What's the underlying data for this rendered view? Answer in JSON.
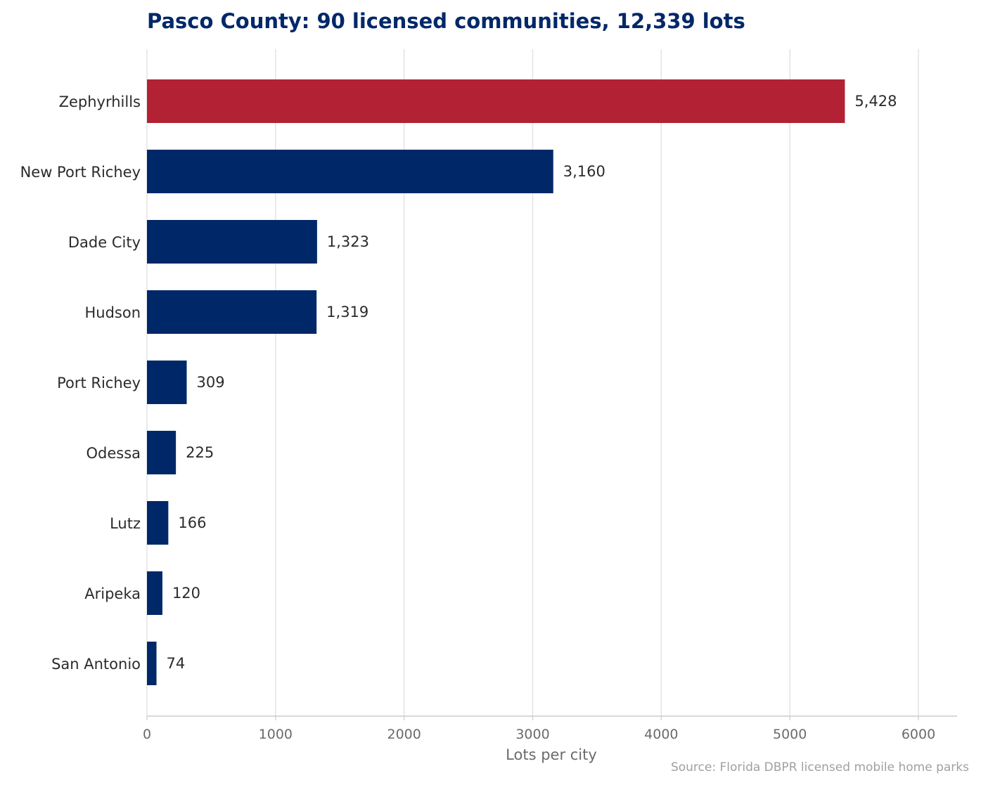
{
  "chart_data": {
    "type": "bar",
    "orientation": "horizontal",
    "title": "Pasco County: 90 licensed communities, 12,339 lots",
    "xlabel": "Lots per city",
    "ylabel": "",
    "categories": [
      "Zephyrhills",
      "New Port Richey",
      "Dade City",
      "Hudson",
      "Port Richey",
      "Odessa",
      "Lutz",
      "Aripeka",
      "San Antonio"
    ],
    "values": [
      5428,
      3160,
      1323,
      1319,
      309,
      225,
      166,
      120,
      74
    ],
    "value_labels": [
      "5,428",
      "3,160",
      "1,323",
      "1,319",
      "309",
      "225",
      "166",
      "120",
      "74"
    ],
    "highlight_index": 0,
    "xlim": [
      0,
      6300
    ],
    "x_ticks": [
      0,
      1000,
      2000,
      3000,
      4000,
      5000,
      6000
    ],
    "x_tick_labels": [
      "0",
      "1000",
      "2000",
      "3000",
      "4000",
      "5000",
      "6000"
    ],
    "grid": "vertical",
    "legend": "none",
    "source": "Source: Florida DBPR licensed mobile home parks"
  },
  "colors": {
    "title": "#002868",
    "bar": "#002868",
    "highlight": "#B22234",
    "grid": "#e3e3e3",
    "axis": "#cccccc"
  }
}
